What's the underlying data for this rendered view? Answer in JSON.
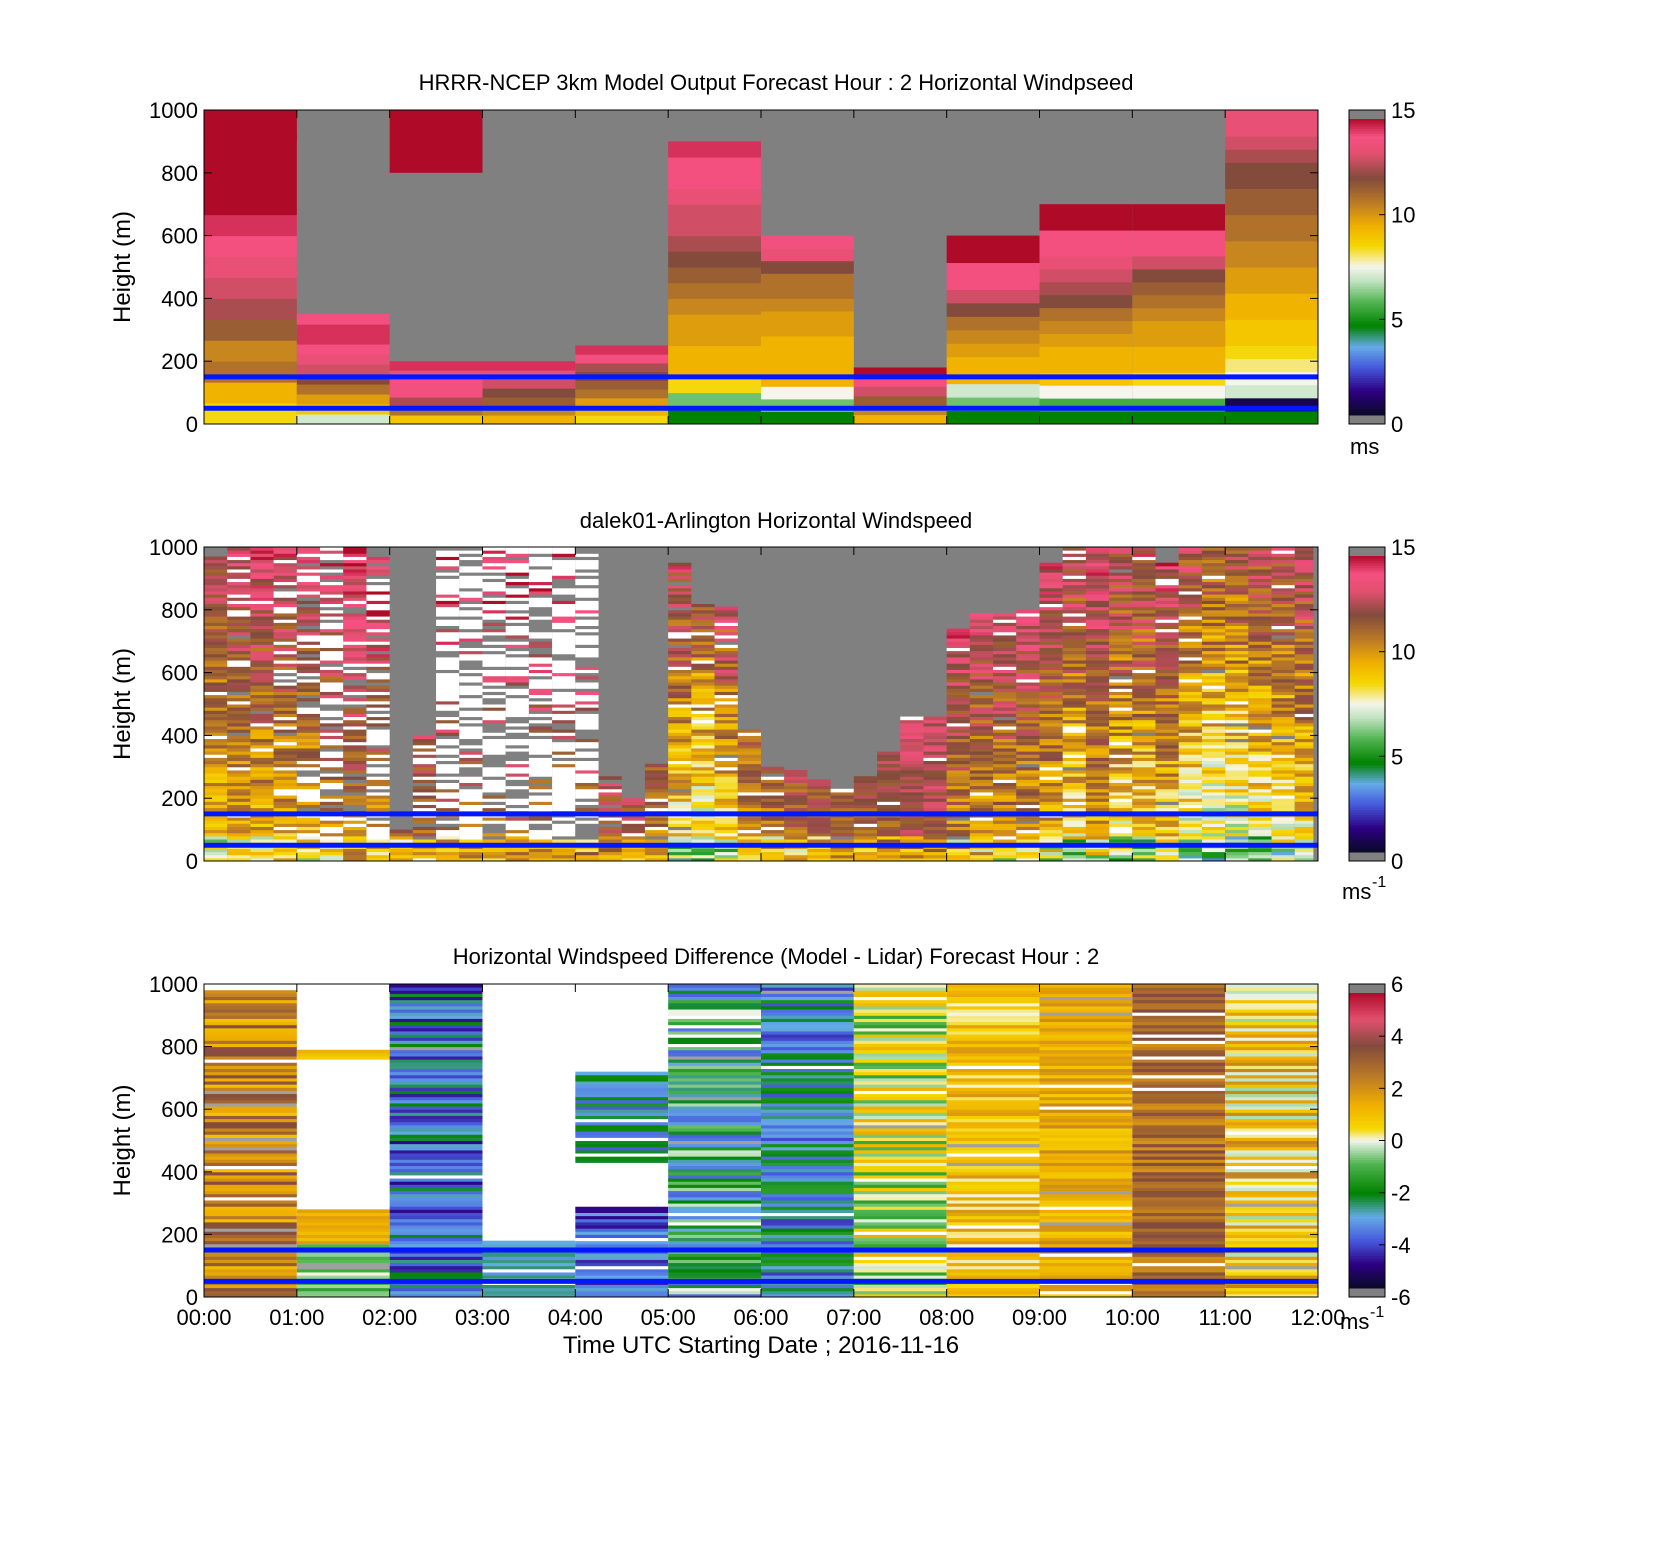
{
  "chart_data": [
    {
      "type": "heatmap",
      "title": "HRRR-NCEP 3km Model Output   Forecast Hour : 2 Horizontal Windpseed",
      "ylabel": "Height (m)",
      "xlabel": "",
      "ylim": [
        0,
        1000
      ],
      "xlim": [
        0,
        12
      ],
      "yticks": [
        "0",
        "200",
        "400",
        "600",
        "800",
        "1000"
      ],
      "xticks": [],
      "colorbar": {
        "range": [
          0,
          15
        ],
        "ticks": [
          "0",
          "5",
          "10",
          "15"
        ],
        "unit": "ms",
        "unit_sup": ""
      },
      "reference_lines_m": [
        50,
        150
      ],
      "columns": [
        {
          "t0": 0,
          "t1": 1,
          "top": 1000,
          "values": [
            8.5,
            9.5,
            11,
            10.5,
            11.5,
            12.5,
            13,
            13.5,
            14,
            14.5,
            15,
            15.5,
            15.5,
            15,
            14.5
          ],
          "top_band": [
            900,
            1000,
            15.5
          ]
        },
        {
          "t0": 1,
          "t1": 2,
          "top": 350,
          "values": [
            7,
            9,
            10,
            11,
            12,
            13,
            13.5,
            14,
            14.5,
            14.5,
            14
          ]
        },
        {
          "t0": 2,
          "t1": 3,
          "top": 200,
          "values": [
            9,
            11,
            12.5,
            14,
            14,
            13.5,
            14.5
          ],
          "top_band": [
            800,
            1000,
            15
          ]
        },
        {
          "t0": 3,
          "t1": 4,
          "top": 200,
          "values": [
            9.5,
            10.5,
            11.5,
            12,
            13,
            13.5,
            14.5
          ]
        },
        {
          "t0": 4,
          "t1": 5,
          "top": 250,
          "values": [
            8.5,
            9.5,
            10,
            11,
            11.5,
            12,
            12.5,
            14,
            14.5
          ]
        },
        {
          "t0": 5,
          "t1": 6,
          "top": 900,
          "values": [
            4.5,
            6,
            8.5,
            9.5,
            9.5,
            10,
            10,
            10.5,
            11,
            11.5,
            12,
            12.5,
            13,
            13,
            13.5,
            14,
            14,
            14.5
          ]
        },
        {
          "t0": 6,
          "t1": 7,
          "top": 600,
          "values": [
            4.5,
            6,
            7.5,
            9.5,
            9.5,
            9.5,
            9.5,
            10,
            10,
            10.5,
            11,
            11,
            12,
            13.5,
            14
          ]
        },
        {
          "t0": 7,
          "t1": 8,
          "top": 180,
          "values": [
            9.5,
            10.5,
            11.5,
            13,
            14,
            15
          ]
        },
        {
          "t0": 8,
          "t1": 9,
          "top": 600,
          "values": [
            4.5,
            6,
            7,
            9.5,
            9.5,
            10,
            10.5,
            11,
            12,
            13,
            14,
            14,
            15,
            15.5
          ]
        },
        {
          "t0": 9,
          "t1": 10,
          "top": 700,
          "values": [
            4.5,
            5.5,
            7.5,
            9,
            9.5,
            9.5,
            10,
            10.5,
            11,
            12,
            12.5,
            13,
            13.5,
            14,
            14,
            15,
            15
          ]
        },
        {
          "t0": 10,
          "t1": 11,
          "top": 700,
          "values": [
            4.5,
            5.5,
            7.5,
            8.5,
            9.5,
            9.5,
            10,
            10,
            10.5,
            11,
            11.5,
            12,
            13,
            14,
            14,
            15,
            15
          ]
        },
        {
          "t0": 11,
          "t1": 12,
          "top": 1000,
          "values": [
            4.5,
            0.5,
            7,
            7.5,
            8,
            8.5,
            9,
            9,
            9.5,
            9.5,
            10,
            10,
            10.5,
            10.5,
            11,
            11,
            11.5,
            11.5,
            12,
            12,
            12.5,
            13,
            13.5,
            13.5
          ]
        }
      ]
    },
    {
      "type": "heatmap",
      "title": "dalek01-Arlington  Horizontal Windspeed",
      "ylabel": "Height (m)",
      "xlabel": "",
      "ylim": [
        0,
        1000
      ],
      "xlim": [
        0,
        12
      ],
      "yticks": [
        "0",
        "200",
        "400",
        "600",
        "800",
        "1000"
      ],
      "xticks": [],
      "colorbar": {
        "range": [
          0,
          15
        ],
        "ticks": [
          "0",
          "5",
          "10",
          "15"
        ],
        "unit": "ms",
        "unit_sup": "-1"
      },
      "reference_lines_m": [
        50,
        150
      ],
      "columns": [
        {
          "t0": 0.0,
          "t1": 0.25,
          "top": 970,
          "mean": 10.5,
          "amp": 2.5,
          "gaps": 0.05
        },
        {
          "t0": 0.25,
          "t1": 0.5,
          "top": 1000,
          "mean": 11,
          "amp": 2.5,
          "gaps": 0.12
        },
        {
          "t0": 0.5,
          "t1": 0.75,
          "top": 1000,
          "mean": 11,
          "amp": 3,
          "gaps": 0.1
        },
        {
          "t0": 0.75,
          "t1": 1.0,
          "top": 1000,
          "mean": 11,
          "amp": 3,
          "gaps": 0.25
        },
        {
          "t0": 1.0,
          "t1": 1.25,
          "top": 1000,
          "mean": 11,
          "amp": 3,
          "gaps": 0.45
        },
        {
          "t0": 1.25,
          "t1": 1.5,
          "top": 1000,
          "mean": 11.5,
          "amp": 3,
          "gaps": 0.6
        },
        {
          "t0": 1.5,
          "t1": 1.75,
          "top": 1000,
          "mean": 12,
          "amp": 2.5,
          "gaps": 0.25
        },
        {
          "t0": 1.75,
          "t1": 2.0,
          "top": 980,
          "mean": 12,
          "amp": 3,
          "gaps": 0.55
        },
        {
          "t0": 2.0,
          "t1": 2.25,
          "top": 100,
          "mean": 12.5,
          "amp": 2.5,
          "gaps": 0.05
        },
        {
          "t0": 2.25,
          "t1": 2.5,
          "top": 400,
          "mean": 12.5,
          "amp": 2.5,
          "gaps": 0.3
        },
        {
          "t0": 2.5,
          "t1": 2.75,
          "top": 1000,
          "mean": 12.5,
          "amp": 2.5,
          "gaps": 0.85
        },
        {
          "t0": 2.75,
          "t1": 3.0,
          "top": 1000,
          "mean": 12.5,
          "amp": 2.5,
          "gaps": 0.85
        },
        {
          "t0": 3.0,
          "t1": 3.25,
          "top": 1000,
          "mean": 12.5,
          "amp": 2.5,
          "gaps": 0.85
        },
        {
          "t0": 3.25,
          "t1": 3.5,
          "top": 1000,
          "mean": 12.5,
          "amp": 2.5,
          "gaps": 0.85
        },
        {
          "t0": 3.5,
          "t1": 3.75,
          "top": 1000,
          "mean": 12.5,
          "amp": 2.5,
          "gaps": 0.85
        },
        {
          "t0": 3.75,
          "t1": 4.0,
          "top": 1000,
          "mean": 12.5,
          "amp": 2.5,
          "gaps": 0.85
        },
        {
          "t0": 4.0,
          "t1": 4.25,
          "top": 1000,
          "mean": 12.5,
          "amp": 2.5,
          "gaps": 0.85
        },
        {
          "t0": 4.25,
          "t1": 4.5,
          "top": 270,
          "mean": 13,
          "amp": 2.5,
          "gaps": 0.3
        },
        {
          "t0": 4.5,
          "t1": 4.75,
          "top": 200,
          "mean": 13,
          "amp": 2.5,
          "gaps": 0.25
        },
        {
          "t0": 4.75,
          "t1": 5.0,
          "top": 310,
          "mean": 12,
          "amp": 2.5,
          "gaps": 0.15
        },
        {
          "t0": 5.0,
          "t1": 5.25,
          "top": 950,
          "mean": 10,
          "amp": 3.5,
          "gaps": 0.12
        },
        {
          "t0": 5.25,
          "t1": 5.5,
          "top": 830,
          "mean": 9.5,
          "amp": 3.5,
          "gaps": 0.1
        },
        {
          "t0": 5.5,
          "t1": 5.75,
          "top": 810,
          "mean": 10.5,
          "amp": 3.5,
          "gaps": 0.12
        },
        {
          "t0": 5.75,
          "t1": 6.0,
          "top": 420,
          "mean": 11.5,
          "amp": 2.5,
          "gaps": 0.1
        },
        {
          "t0": 6.0,
          "t1": 6.25,
          "top": 300,
          "mean": 12,
          "amp": 2.5,
          "gaps": 0.05
        },
        {
          "t0": 6.25,
          "t1": 6.5,
          "top": 290,
          "mean": 12.5,
          "amp": 2.5,
          "gaps": 0.05
        },
        {
          "t0": 6.5,
          "t1": 6.75,
          "top": 260,
          "mean": 12.5,
          "amp": 2,
          "gaps": 0.05
        },
        {
          "t0": 6.75,
          "t1": 7.0,
          "top": 230,
          "mean": 12.5,
          "amp": 2,
          "gaps": 0.05
        },
        {
          "t0": 7.0,
          "t1": 7.25,
          "top": 270,
          "mean": 12.5,
          "amp": 2,
          "gaps": 0.05
        },
        {
          "t0": 7.25,
          "t1": 7.5,
          "top": 360,
          "mean": 12.5,
          "amp": 2,
          "gaps": 0.05
        },
        {
          "t0": 7.5,
          "t1": 7.75,
          "top": 460,
          "mean": 13,
          "amp": 2,
          "gaps": 0.05
        },
        {
          "t0": 7.75,
          "t1": 8.0,
          "top": 460,
          "mean": 13,
          "amp": 2,
          "gaps": 0.05
        },
        {
          "t0": 8.0,
          "t1": 8.25,
          "top": 740,
          "mean": 12,
          "amp": 3,
          "gaps": 0.05
        },
        {
          "t0": 8.25,
          "t1": 8.5,
          "top": 790,
          "mean": 11.5,
          "amp": 3,
          "gaps": 0.05
        },
        {
          "t0": 8.5,
          "t1": 8.75,
          "top": 790,
          "mean": 11.5,
          "amp": 3,
          "gaps": 0.05
        },
        {
          "t0": 8.75,
          "t1": 9.0,
          "top": 800,
          "mean": 11.5,
          "amp": 3,
          "gaps": 0.05
        },
        {
          "t0": 9.0,
          "t1": 9.25,
          "top": 950,
          "mean": 11,
          "amp": 3,
          "gaps": 0.05
        },
        {
          "t0": 9.25,
          "t1": 9.5,
          "top": 1000,
          "mean": 10,
          "amp": 3.5,
          "gaps": 0.05
        },
        {
          "t0": 9.5,
          "t1": 9.75,
          "top": 1000,
          "mean": 11,
          "amp": 3,
          "gaps": 0.05
        },
        {
          "t0": 9.75,
          "t1": 10.0,
          "top": 1000,
          "mean": 10,
          "amp": 3.5,
          "gaps": 0.05
        },
        {
          "t0": 10.0,
          "t1": 10.25,
          "top": 1000,
          "mean": 10,
          "amp": 3.5,
          "gaps": 0.05
        },
        {
          "t0": 10.25,
          "t1": 10.5,
          "top": 950,
          "mean": 10.5,
          "amp": 3.5,
          "gaps": 0.05
        },
        {
          "t0": 10.5,
          "t1": 10.75,
          "top": 1000,
          "mean": 9.5,
          "amp": 3.5,
          "gaps": 0.05
        },
        {
          "t0": 10.75,
          "t1": 11.0,
          "top": 1000,
          "mean": 9,
          "amp": 3.5,
          "gaps": 0.05
        },
        {
          "t0": 11.0,
          "t1": 11.25,
          "top": 1000,
          "mean": 9,
          "amp": 3.5,
          "gaps": 0.05
        },
        {
          "t0": 11.25,
          "t1": 11.5,
          "top": 1000,
          "mean": 9.5,
          "amp": 3.5,
          "gaps": 0.05
        },
        {
          "t0": 11.5,
          "t1": 11.75,
          "top": 1000,
          "mean": 9.5,
          "amp": 3.5,
          "gaps": 0.05
        },
        {
          "t0": 11.75,
          "t1": 11.95,
          "top": 1000,
          "mean": 10,
          "amp": 3.5,
          "gaps": 0.05
        }
      ]
    },
    {
      "type": "heatmap",
      "title": "Horizontal Windspeed Difference (Model - Lidar) Forecast Hour : 2",
      "ylabel": "Height (m)",
      "xlabel": "Time UTC  Starting Date ; 2016-11-16",
      "ylim": [
        0,
        1000
      ],
      "xlim": [
        0,
        12
      ],
      "yticks": [
        "0",
        "200",
        "400",
        "600",
        "800",
        "1000"
      ],
      "xticks": [
        "00:00",
        "01:00",
        "02:00",
        "03:00",
        "04:00",
        "05:00",
        "06:00",
        "07:00",
        "08:00",
        "09:00",
        "10:00",
        "11:00",
        "12:00"
      ],
      "colorbar": {
        "range": [
          -6,
          6
        ],
        "ticks": [
          "-6",
          "-4",
          "-2",
          "0",
          "2",
          "4",
          "6"
        ],
        "unit": "ms",
        "unit_sup": "-1"
      },
      "reference_lines_m": [
        50,
        150
      ],
      "columns": [
        {
          "t0": 0,
          "t1": 1,
          "segments": [
            [
              0,
              980,
              2.5,
              1.5
            ]
          ]
        },
        {
          "t0": 1,
          "t1": 2,
          "segments": [
            [
              0,
              200,
              -0.5,
              1
            ],
            [
              170,
              280,
              1.5,
              0.5
            ],
            [
              760,
              790,
              1,
              0.5
            ]
          ]
        },
        {
          "t0": 2,
          "t1": 3,
          "segments": [
            [
              0,
              1000,
              -3.5,
              1.5
            ]
          ]
        },
        {
          "t0": 3,
          "t1": 4,
          "segments": [
            [
              0,
              180,
              -3,
              0.5
            ]
          ]
        },
        {
          "t0": 4,
          "t1": 5,
          "segments": [
            [
              0,
              300,
              -4,
              1
            ],
            [
              430,
              720,
              -3,
              1.5
            ]
          ]
        },
        {
          "t0": 5,
          "t1": 6,
          "segments": [
            [
              0,
              1000,
              -2,
              2
            ]
          ]
        },
        {
          "t0": 6,
          "t1": 7,
          "segments": [
            [
              0,
              1000,
              -3,
              1.5
            ]
          ]
        },
        {
          "t0": 7,
          "t1": 8,
          "segments": [
            [
              0,
              1000,
              0,
              1.5
            ]
          ]
        },
        {
          "t0": 8,
          "t1": 9,
          "segments": [
            [
              0,
              1000,
              1,
              1
            ]
          ]
        },
        {
          "t0": 9,
          "t1": 10,
          "segments": [
            [
              0,
              1000,
              1.5,
              0.8
            ]
          ]
        },
        {
          "t0": 10,
          "t1": 11,
          "segments": [
            [
              0,
              1000,
              3,
              1
            ]
          ]
        },
        {
          "t0": 11,
          "t1": 12,
          "segments": [
            [
              0,
              1000,
              1,
              1.5
            ]
          ]
        }
      ]
    }
  ]
}
